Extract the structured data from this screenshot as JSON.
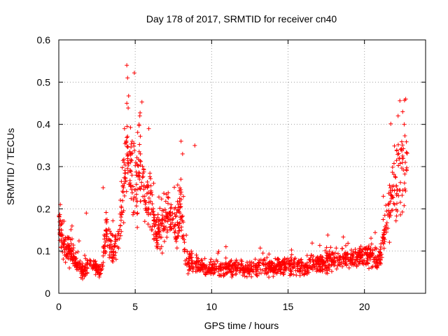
{
  "chart_data": {
    "type": "scatter",
    "title": "Day 178 of 2017, SRMTID for receiver cn40",
    "xlabel": "GPS time / hours",
    "ylabel": "SRMTID / TECUs",
    "xlim": [
      0,
      24
    ],
    "ylim": [
      0,
      0.6
    ],
    "xticks": [
      "0",
      "5",
      "10",
      "15",
      "20"
    ],
    "xtick_values": [
      0,
      5,
      10,
      15,
      20
    ],
    "yticks": [
      "0",
      "0.1",
      "0.2",
      "0.3",
      "0.4",
      "0.5",
      "0.6"
    ],
    "ytick_values": [
      0,
      0.1,
      0.2,
      0.3,
      0.4,
      0.5,
      0.6
    ],
    "grid": true,
    "marker": "+",
    "color": "#ff0000",
    "series": [
      {
        "name": "SRMTID",
        "profile_x": [
          0,
          0.3,
          0.7,
          1.2,
          1.6,
          2.0,
          2.5,
          2.8,
          3.1,
          3.5,
          3.9,
          4.2,
          4.5,
          4.8,
          5.1,
          5.4,
          5.7,
          6.0,
          6.4,
          6.8,
          7.2,
          7.6,
          8.0,
          8.3,
          8.7,
          9.0,
          9.5,
          10,
          11,
          12,
          13,
          14,
          15,
          16,
          17,
          18,
          19,
          20,
          20.5,
          21.0,
          21.3,
          21.6,
          21.9,
          22.2,
          22.5,
          22.8
        ],
        "profile_y": [
          0.17,
          0.11,
          0.1,
          0.07,
          0.05,
          0.07,
          0.06,
          0.05,
          0.15,
          0.1,
          0.12,
          0.25,
          0.32,
          0.28,
          0.25,
          0.3,
          0.22,
          0.21,
          0.14,
          0.17,
          0.2,
          0.15,
          0.2,
          0.08,
          0.07,
          0.07,
          0.06,
          0.06,
          0.06,
          0.06,
          0.06,
          0.06,
          0.07,
          0.06,
          0.07,
          0.08,
          0.08,
          0.09,
          0.09,
          0.08,
          0.15,
          0.2,
          0.25,
          0.28,
          0.32,
          0.3
        ],
        "n_points": 1800,
        "peaks": [
          {
            "x": 4.45,
            "y": 0.54
          },
          {
            "x": 4.5,
            "y": 0.51
          },
          {
            "x": 4.45,
            "y": 0.45
          },
          {
            "x": 5.3,
            "y": 0.42
          },
          {
            "x": 5.25,
            "y": 0.4
          },
          {
            "x": 4.3,
            "y": 0.39
          },
          {
            "x": 8.0,
            "y": 0.36
          },
          {
            "x": 8.9,
            "y": 0.35
          },
          {
            "x": 8.1,
            "y": 0.33
          },
          {
            "x": 22.7,
            "y": 0.46
          },
          {
            "x": 22.5,
            "y": 0.43
          },
          {
            "x": 22.2,
            "y": 0.42
          },
          {
            "x": 22.6,
            "y": 0.4
          },
          {
            "x": 0.1,
            "y": 0.21
          },
          {
            "x": 1.8,
            "y": 0.19
          },
          {
            "x": 2.9,
            "y": 0.25
          }
        ]
      }
    ]
  }
}
